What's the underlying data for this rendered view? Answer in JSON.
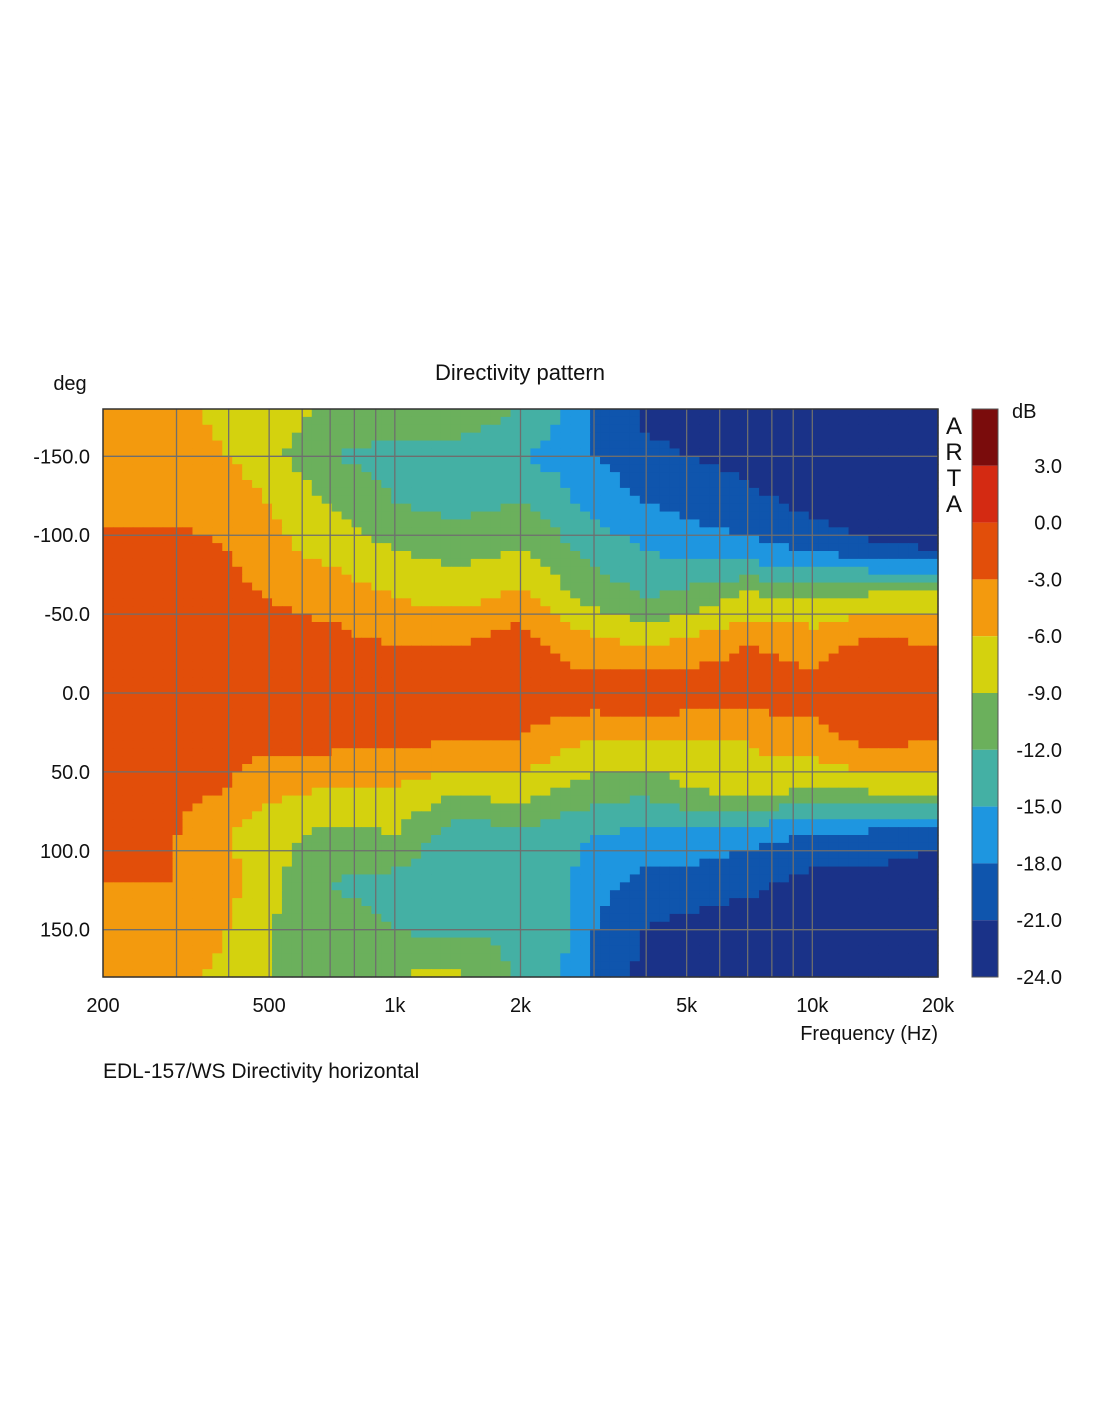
{
  "chart_data": {
    "type": "heatmap",
    "title": "Directivity pattern",
    "xlabel": "Frequency (Hz)",
    "ylabel": "deg",
    "x_scale": "log",
    "xlim": [
      200,
      20000
    ],
    "ylim": [
      -180,
      180
    ],
    "x_ticks": [
      {
        "value": 200,
        "label": "200"
      },
      {
        "value": 500,
        "label": "500"
      },
      {
        "value": 1000,
        "label": "1k"
      },
      {
        "value": 2000,
        "label": "2k"
      },
      {
        "value": 5000,
        "label": "5k"
      },
      {
        "value": 10000,
        "label": "10k"
      },
      {
        "value": 20000,
        "label": "20k"
      }
    ],
    "y_ticks": [
      {
        "value": -150,
        "label": "-150.0"
      },
      {
        "value": -100,
        "label": "-100.0"
      },
      {
        "value": -50,
        "label": "-50.0"
      },
      {
        "value": 0,
        "label": "0.0"
      },
      {
        "value": 50,
        "label": "50.0"
      },
      {
        "value": 100,
        "label": "100.0"
      },
      {
        "value": 150,
        "label": "150.0"
      }
    ],
    "grid": true,
    "watermark": "ARTA",
    "colorbar": {
      "unit": "dB",
      "min": -24,
      "max": 6,
      "tick_labels": [
        {
          "value": 3,
          "label": "3.0"
        },
        {
          "value": 0,
          "label": "0.0"
        },
        {
          "value": -3,
          "label": "-3.0"
        },
        {
          "value": -6,
          "label": "-6.0"
        },
        {
          "value": -9,
          "label": "-9.0"
        },
        {
          "value": -12,
          "label": "-12.0"
        },
        {
          "value": -15,
          "label": "-15.0"
        },
        {
          "value": -18,
          "label": "-18.0"
        },
        {
          "value": -21,
          "label": "-21.0"
        },
        {
          "value": -24,
          "label": "-24.0"
        }
      ],
      "bands": [
        {
          "from": 3,
          "to": 6,
          "color": "#7a0c0c"
        },
        {
          "from": 0,
          "to": 3,
          "color": "#d42a12"
        },
        {
          "from": -3,
          "to": 0,
          "color": "#e24e0a"
        },
        {
          "from": -6,
          "to": -3,
          "color": "#f39a0e"
        },
        {
          "from": -9,
          "to": -6,
          "color": "#d4d20e"
        },
        {
          "from": -12,
          "to": -9,
          "color": "#6bb05c"
        },
        {
          "from": -15,
          "to": -12,
          "color": "#44b0a4"
        },
        {
          "from": -18,
          "to": -15,
          "color": "#1e96e0"
        },
        {
          "from": -21,
          "to": -18,
          "color": "#0f55ad"
        },
        {
          "from": -24,
          "to": -21,
          "color": "#1a3288"
        }
      ]
    },
    "frequencies": [
      200,
      300,
      400,
      500,
      700,
      1000,
      1400,
      2000,
      2500,
      3000,
      4000,
      5000,
      7000,
      10000,
      14000,
      20000
    ],
    "angles": [
      -180,
      -150,
      -120,
      -90,
      -60,
      -30,
      0,
      30,
      60,
      90,
      120,
      150,
      180
    ],
    "values_db": [
      [
        -5,
        -5,
        -7,
        -7,
        -10,
        -10,
        -9,
        -12,
        -15,
        -18,
        -22,
        -23,
        -24,
        -24,
        -24,
        -24
      ],
      [
        -5,
        -5,
        -6,
        -8,
        -12,
        -13,
        -14,
        -15,
        -16,
        -18,
        -20,
        -21,
        -22,
        -24,
        -24,
        -24
      ],
      [
        -4,
        -4,
        -4,
        -6,
        -9,
        -12,
        -13,
        -12,
        -14,
        -16,
        -18,
        -19,
        -20,
        -22,
        -24,
        -24
      ],
      [
        -2,
        -2,
        -3,
        -5,
        -7,
        -9,
        -10,
        -9,
        -11,
        -13,
        -15,
        -16,
        -17,
        -18,
        -20,
        -21
      ],
      [
        -2,
        -2,
        -2,
        -3,
        -4,
        -6,
        -7,
        -5,
        -8,
        -10,
        -12,
        -11,
        -8,
        -9,
        -8,
        -7
      ],
      [
        -2,
        -2,
        -2,
        -2,
        -2,
        -3,
        -3,
        -1,
        -4,
        -5,
        -6,
        -5,
        -3,
        -4,
        -2,
        -3
      ],
      [
        -2,
        -2,
        -2,
        -2,
        -2,
        -1,
        -1,
        -1,
        -1,
        -1,
        0,
        -1,
        -1,
        -2,
        0,
        0
      ],
      [
        -2,
        -2,
        -2,
        -2,
        -2,
        -2,
        -3,
        -3,
        -5,
        -6,
        -6,
        -6,
        -6,
        -4,
        -2,
        -3
      ],
      [
        -2,
        -2,
        -3,
        -5,
        -6,
        -6,
        -8,
        -7,
        -9,
        -10,
        -11,
        -9,
        -7,
        -9,
        -8,
        -7
      ],
      [
        -2,
        -3,
        -6,
        -8,
        -10,
        -9,
        -14,
        -13,
        -14,
        -15,
        -16,
        -16,
        -17,
        -18,
        -19,
        -20
      ],
      [
        -3,
        -3,
        -5,
        -8,
        -12,
        -13,
        -14,
        -14,
        -14,
        -17,
        -19,
        -19,
        -20,
        -22,
        -22,
        -23
      ],
      [
        -4,
        -4,
        -6,
        -9,
        -11,
        -12,
        -13,
        -12,
        -14,
        -18,
        -21,
        -22,
        -23,
        -24,
        -24,
        -24
      ],
      [
        -5,
        -5,
        -7,
        -9,
        -10,
        -9,
        -8,
        -13,
        -15,
        -19,
        -22,
        -23,
        -24,
        -24,
        -24,
        -24
      ]
    ]
  },
  "caption": "EDL-157/WS Directivity horizontal"
}
